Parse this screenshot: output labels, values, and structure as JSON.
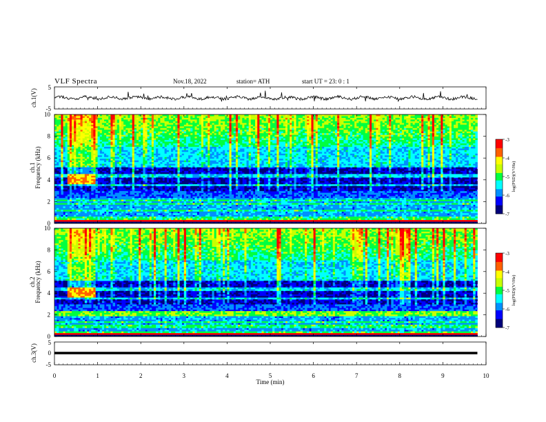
{
  "header": {
    "title": "VLF  Spectra",
    "date": "Nov.18, 2022",
    "station": "station= ATH",
    "start": "start  UT  =    23: 0   : 1"
  },
  "colors": {
    "colormap": [
      "#00007a",
      "#0000ff",
      "#0090ff",
      "#00ffff",
      "#00ff40",
      "#c8ff00",
      "#ffff00",
      "#ff6000",
      "#ff0000",
      "#ffffff"
    ],
    "trace": "#000000"
  },
  "chart_data": [
    {
      "type": "line",
      "name": "channel-1-waveform",
      "ylabel": "ch.1(V)",
      "ylim": [
        -5,
        5
      ],
      "yticks": [
        "5",
        "-5"
      ],
      "xlim": [
        0,
        10
      ],
      "approx_level": 0,
      "approx_spikes_amplitude": 2.5
    },
    {
      "type": "heatmap",
      "name": "channel-1-spectrogram",
      "ylabel": "ch.1\nFrequency  (kHz)",
      "ylim": [
        0,
        10
      ],
      "yticks": [
        "0",
        "2",
        "4",
        "6",
        "8",
        "10"
      ],
      "xlim": [
        0,
        9.8
      ],
      "colorbar": {
        "label": "log(PSD)(V²/Hz)",
        "range": [
          -7,
          -3
        ],
        "ticks": [
          "-3",
          "-4",
          "-5",
          "-6",
          "-7"
        ]
      }
    },
    {
      "type": "heatmap",
      "name": "channel-2-spectrogram",
      "ylabel": "ch.2\nFrequency  (kHz)",
      "ylim": [
        0,
        10
      ],
      "yticks": [
        "0",
        "2",
        "4",
        "6",
        "8",
        "10"
      ],
      "xlim": [
        0,
        9.8
      ],
      "colorbar": {
        "label": "log(PSD)(V²/Hz)",
        "range": [
          -7,
          -3
        ],
        "ticks": [
          "-3",
          "-4",
          "-5",
          "-6",
          "-7"
        ]
      }
    },
    {
      "type": "line",
      "name": "channel-3-waveform",
      "ylabel": "ch.3(V)",
      "ylim": [
        -5,
        5
      ],
      "yticks": [
        "5",
        "0",
        "-5"
      ],
      "xlim": [
        0,
        10
      ],
      "approx_level": -1
    }
  ],
  "xaxis": {
    "label": "Time  (min)",
    "ticks": [
      "0",
      "1",
      "2",
      "3",
      "4",
      "5",
      "6",
      "7",
      "8",
      "9",
      "10"
    ],
    "range": [
      0,
      10
    ]
  }
}
